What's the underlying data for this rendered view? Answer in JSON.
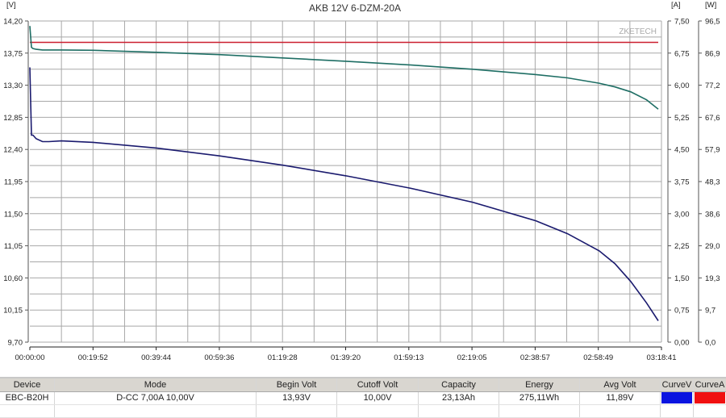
{
  "chart_data": {
    "type": "line",
    "title": "AKB 12V 6-DZM-20A",
    "watermark": "ZKETECH",
    "xlabel": "",
    "x_ticks": [
      "00:00:00",
      "00:19:52",
      "00:39:44",
      "00:59:36",
      "01:19:28",
      "01:39:20",
      "01:59:13",
      "02:19:05",
      "02:38:57",
      "02:58:49",
      "03:18:41"
    ],
    "y_left": {
      "unit": "[V]",
      "ticks": [
        "14,20",
        "13,75",
        "13,30",
        "12,85",
        "12,40",
        "11,95",
        "11,50",
        "11,05",
        "10,60",
        "10,15",
        "9,70"
      ],
      "range": [
        9.7,
        14.2
      ]
    },
    "y_right_current": {
      "unit": "[A]",
      "ticks": [
        "7,50",
        "6,75",
        "6,00",
        "5,25",
        "4,50",
        "3,75",
        "3,00",
        "2,25",
        "1,50",
        "0,75",
        "0,00"
      ],
      "range": [
        0,
        7.5
      ]
    },
    "y_right_power": {
      "unit": "[W]",
      "ticks": [
        "96,5",
        "86,9",
        "77,2",
        "67,6",
        "57,9",
        "48,3",
        "38,6",
        "29,0",
        "19,3",
        "9,7",
        "0,0"
      ],
      "range": [
        0,
        96.5
      ]
    },
    "grid": true,
    "series": [
      {
        "name": "Voltage",
        "axis": "V",
        "color": "#1a1a6e",
        "x_min": [
          0,
          0.5,
          1,
          2,
          4,
          6,
          10,
          20,
          40,
          60,
          80,
          100,
          120,
          140,
          160,
          170,
          180,
          185,
          190,
          195,
          198.7
        ],
        "values": [
          13.55,
          12.6,
          12.6,
          12.55,
          12.51,
          12.51,
          12.52,
          12.5,
          12.42,
          12.31,
          12.18,
          12.03,
          11.86,
          11.66,
          11.4,
          11.22,
          10.98,
          10.8,
          10.55,
          10.25,
          10.0
        ]
      },
      {
        "name": "Current",
        "axis": "A",
        "color": "#cc1f2f",
        "x_min": [
          0,
          198.7
        ],
        "values": [
          7.0,
          7.0
        ]
      },
      {
        "name": "Power",
        "axis": "W",
        "color": "#1e6e64",
        "x_min": [
          0,
          0.5,
          1,
          2,
          4,
          10,
          20,
          40,
          60,
          80,
          100,
          120,
          140,
          160,
          170,
          180,
          185,
          190,
          195,
          198.7
        ],
        "values": [
          95.0,
          88.6,
          88.2,
          88.0,
          87.8,
          87.8,
          87.7,
          87.1,
          86.4,
          85.4,
          84.4,
          83.3,
          82.0,
          80.4,
          79.4,
          77.8,
          76.7,
          75.2,
          72.8,
          70.0
        ]
      }
    ]
  },
  "table": {
    "headers": [
      "Device",
      "Mode",
      "Begin Volt",
      "Cutoff Volt",
      "Capacity",
      "Energy",
      "Avg Volt",
      "CurveV",
      "CurveA"
    ],
    "row": {
      "device": "EBC-B20H",
      "mode": "D-CC 7,00A  10,00V",
      "begin_volt": "13,93V",
      "cutoff_volt": "10,00V",
      "capacity": "23,13Ah",
      "energy": "275,11Wh",
      "avg_volt": "11,89V",
      "curve_v_color": "#0a14e0",
      "curve_a_color": "#f01010"
    }
  }
}
